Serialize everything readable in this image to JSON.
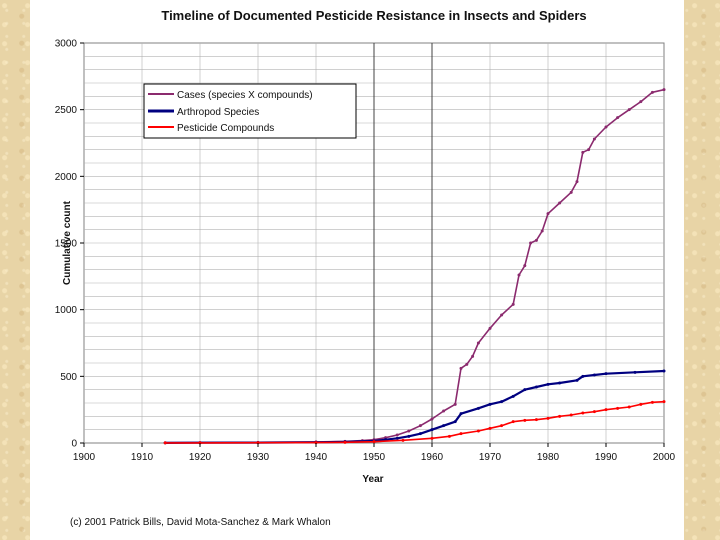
{
  "colors": {
    "background": "#e8d4a6",
    "cases": "#8b2a6e",
    "species": "#000080",
    "compounds": "#ff0000",
    "grid": "#b3b3b3"
  },
  "chart_data": {
    "type": "line",
    "title": "Timeline of Documented Pesticide Resistance in Insects and Spiders",
    "xlabel": "Year",
    "ylabel": "Cumulative count",
    "xlim": [
      1900,
      2000
    ],
    "ylim": [
      0,
      3000
    ],
    "x_ticks": [
      "1900",
      "1910",
      "1920",
      "1930",
      "1940",
      "1950",
      "1960",
      "1970",
      "1980",
      "1990",
      "2000"
    ],
    "y_ticks": [
      "0",
      "500",
      "1000",
      "1500",
      "2000",
      "2500",
      "3000"
    ],
    "x_tick_values": [
      1900,
      1910,
      1920,
      1930,
      1940,
      1950,
      1960,
      1970,
      1980,
      1990,
      2000
    ],
    "y_tick_values": [
      0,
      500,
      1000,
      1500,
      2000,
      2500,
      3000
    ],
    "grid": true,
    "legend_position": "top-left",
    "credit": "(c) 2001 Patrick Bills, David Mota-Sanchez & Mark Whalon",
    "series": [
      {
        "name": "Cases (species X compounds)",
        "color": "#8b2a6e",
        "x": [
          1914,
          1920,
          1930,
          1940,
          1945,
          1948,
          1950,
          1952,
          1954,
          1956,
          1958,
          1960,
          1962,
          1964,
          1965,
          1966,
          1967,
          1968,
          1970,
          1972,
          1974,
          1975,
          1976,
          1977,
          1978,
          1979,
          1980,
          1982,
          1984,
          1985,
          1986,
          1987,
          1988,
          1990,
          1992,
          1994,
          1996,
          1998,
          2000
        ],
        "y": [
          2,
          3,
          5,
          8,
          12,
          18,
          25,
          40,
          60,
          90,
          130,
          180,
          240,
          290,
          560,
          590,
          650,
          750,
          860,
          960,
          1040,
          1260,
          1330,
          1500,
          1520,
          1590,
          1720,
          1800,
          1880,
          1960,
          2180,
          2200,
          2280,
          2370,
          2440,
          2500,
          2560,
          2630,
          2650
        ]
      },
      {
        "name": "Arthropod Species",
        "color": "#000080",
        "x": [
          1914,
          1920,
          1930,
          1940,
          1945,
          1950,
          1952,
          1954,
          1956,
          1958,
          1960,
          1962,
          1964,
          1965,
          1968,
          1970,
          1972,
          1974,
          1976,
          1978,
          1980,
          1982,
          1985,
          1986,
          1988,
          1990,
          1995,
          2000
        ],
        "y": [
          1,
          2,
          3,
          5,
          8,
          15,
          25,
          35,
          50,
          70,
          100,
          130,
          160,
          220,
          260,
          290,
          310,
          350,
          400,
          420,
          440,
          450,
          470,
          500,
          510,
          520,
          530,
          540
        ]
      },
      {
        "name": "Pesticide Compounds",
        "color": "#ff0000",
        "x": [
          1914,
          1920,
          1930,
          1940,
          1945,
          1950,
          1955,
          1960,
          1963,
          1965,
          1968,
          1970,
          1972,
          1974,
          1976,
          1978,
          1980,
          1982,
          1984,
          1986,
          1988,
          1990,
          1992,
          1994,
          1996,
          1998,
          2000
        ],
        "y": [
          1,
          1,
          2,
          3,
          5,
          10,
          20,
          35,
          50,
          70,
          90,
          110,
          130,
          160,
          170,
          175,
          185,
          200,
          210,
          225,
          235,
          250,
          260,
          270,
          290,
          305,
          310
        ]
      }
    ]
  }
}
